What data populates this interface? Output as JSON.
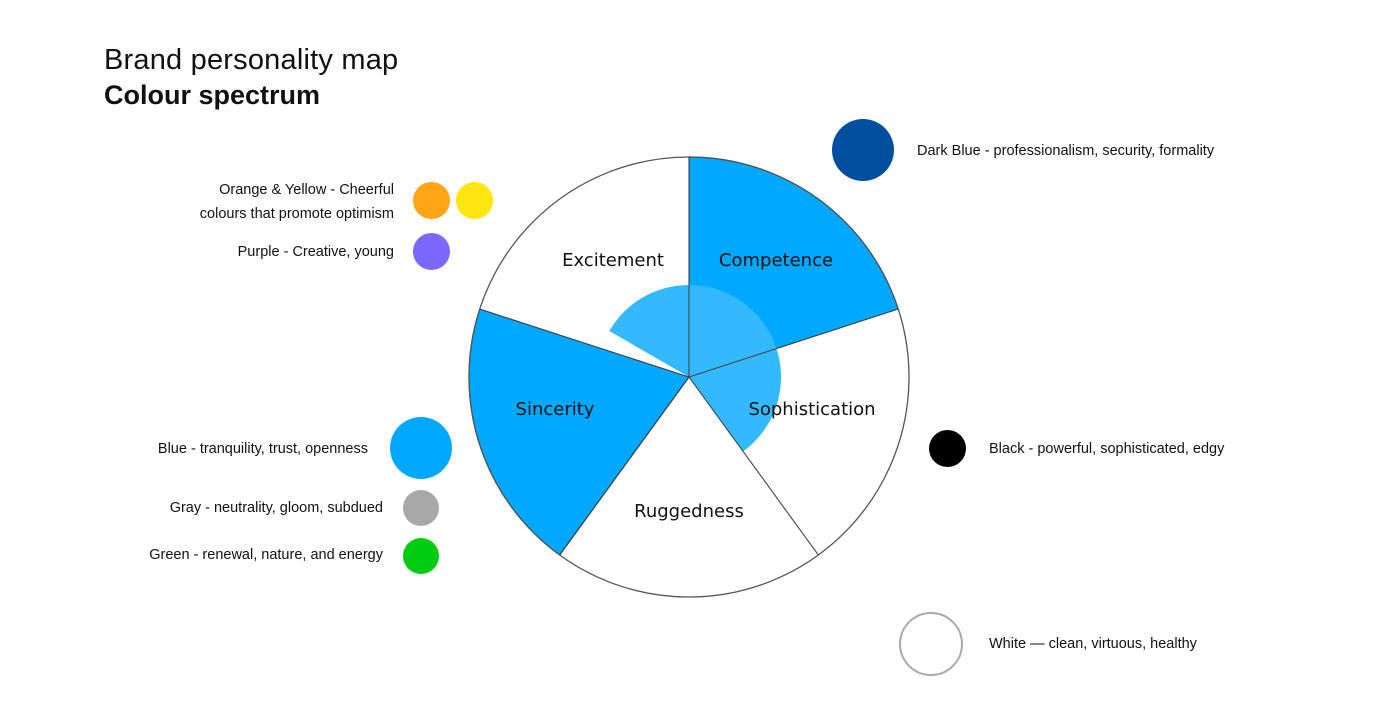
{
  "title": {
    "line1": "Brand personality map",
    "line2": "Colour spectrum"
  },
  "colors": {
    "segment_fill": "#00a8ff",
    "overlay_fill": "#33b9ff",
    "outline": "#555555"
  },
  "wheel": {
    "segments": [
      {
        "id": "competence",
        "label": "Competence",
        "filled": true
      },
      {
        "id": "sophistication",
        "label": "Sophistication",
        "filled": false
      },
      {
        "id": "ruggedness",
        "label": "Ruggedness",
        "filled": false
      },
      {
        "id": "sincerity",
        "label": "Sincerity",
        "filled": true
      },
      {
        "id": "excitement",
        "label": "Excitement",
        "filled": false
      }
    ]
  },
  "legend": {
    "orange_yellow": {
      "text_line1": "Orange & Yellow - Cheerful",
      "text_line2": "colours that promote optimism",
      "colors": [
        "#ffa516",
        "#ffe512"
      ]
    },
    "purple": {
      "text": "Purple - Creative, young",
      "color": "#7b68ff"
    },
    "blue": {
      "text": "Blue - tranquility, trust, openness",
      "color": "#00a8ff"
    },
    "gray": {
      "text": "Gray - neutrality, gloom, subdued",
      "color": "#a8a8a8"
    },
    "green": {
      "text": "Green - renewal, nature, and energy",
      "color": "#00cc11"
    },
    "dark_blue": {
      "text": "Dark Blue - professionalism, security, formality",
      "color": "#004f9e"
    },
    "black": {
      "text": "Black - powerful, sophisticated, edgy",
      "color": "#000000"
    },
    "white": {
      "text": "White — clean, virtuous, healthy",
      "color": "#ffffff",
      "border": "#aaaaaa"
    }
  }
}
